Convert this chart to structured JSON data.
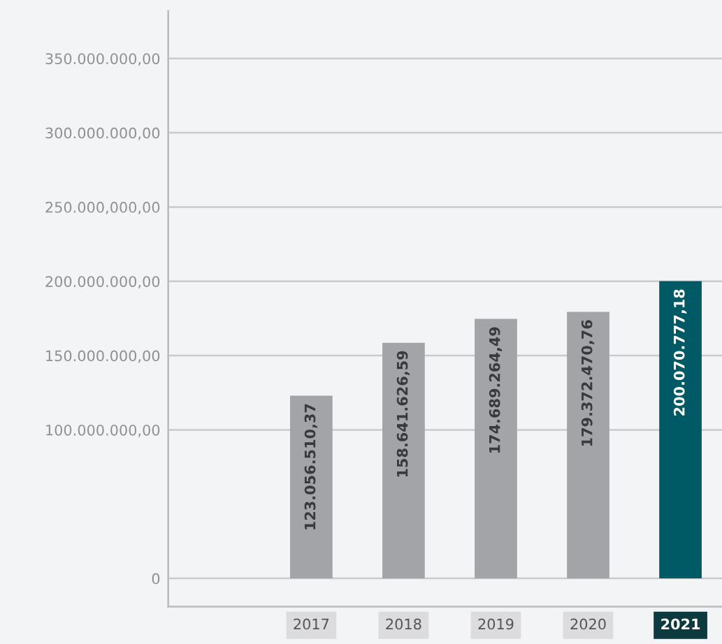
{
  "chart_data": {
    "type": "bar",
    "categories": [
      "2017",
      "2018",
      "2019",
      "2020",
      "2021"
    ],
    "values": [
      123056510.37,
      158641626.59,
      174689264.49,
      179372470.76,
      200070777.18
    ],
    "value_labels": [
      "123.056.510,37",
      "158.641.626,59",
      "174.689.264,49",
      "179.372.470,76",
      "200.070.777,18"
    ],
    "colors": [
      "#a2a4a8",
      "#a2a4a8",
      "#a2a4a8",
      "#a2a4a8",
      "#005a66"
    ],
    "ylim": [
      -19000000,
      382000000
    ],
    "yticks": [
      {
        "value": 0,
        "label": "0"
      },
      {
        "value": 100000000,
        "label": "100.000.000,00"
      },
      {
        "value": 150000000,
        "label": "150.000.000,00"
      },
      {
        "value": 200000000,
        "label": "200.000.000,00"
      },
      {
        "value": 250000000,
        "label": "250.000,000,00"
      },
      {
        "value": 300000000,
        "label": "300.000.000,00"
      },
      {
        "value": 350000000,
        "label": "350.000.000,00"
      }
    ],
    "grid": "y"
  }
}
